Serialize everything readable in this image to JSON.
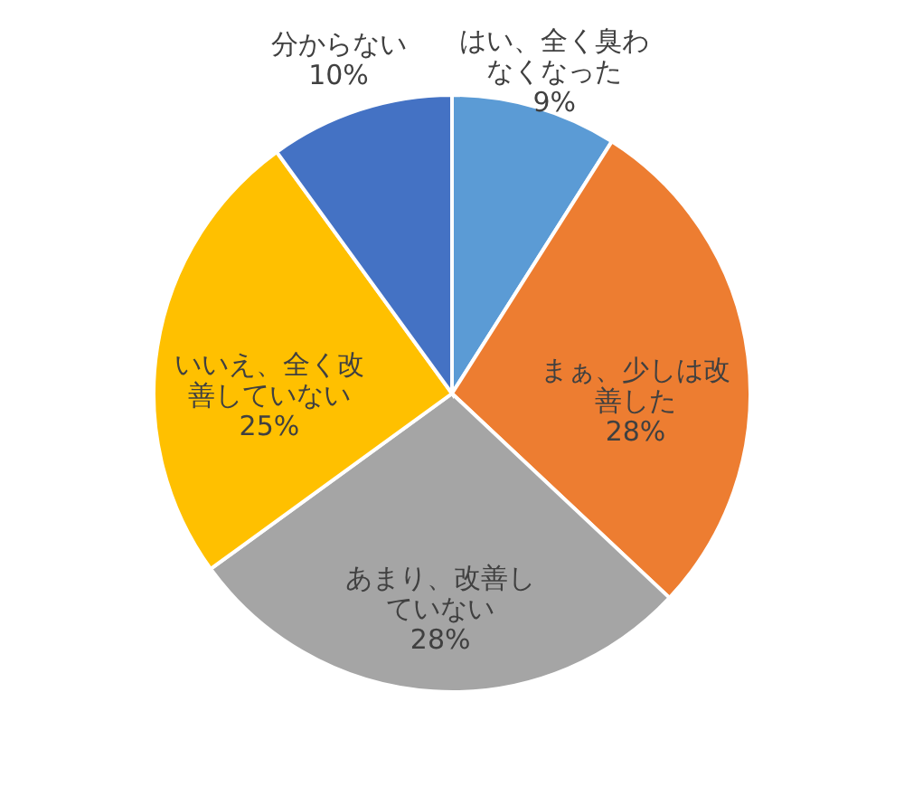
{
  "chart_data": {
    "type": "pie",
    "categories": [
      "はい、全く臭わなくなった",
      "まぁ、少しは改善した",
      "あまり、改善していない",
      "いいえ、全く改善していない",
      "分からない"
    ],
    "values": [
      9,
      28,
      28,
      25,
      10
    ],
    "colors": [
      "#5b9bd5",
      "#ed7d31",
      "#a5a5a5",
      "#ffc000",
      "#4472c4"
    ],
    "value_labels": [
      "9%",
      "28%",
      "28%",
      "25%",
      "10%"
    ]
  }
}
